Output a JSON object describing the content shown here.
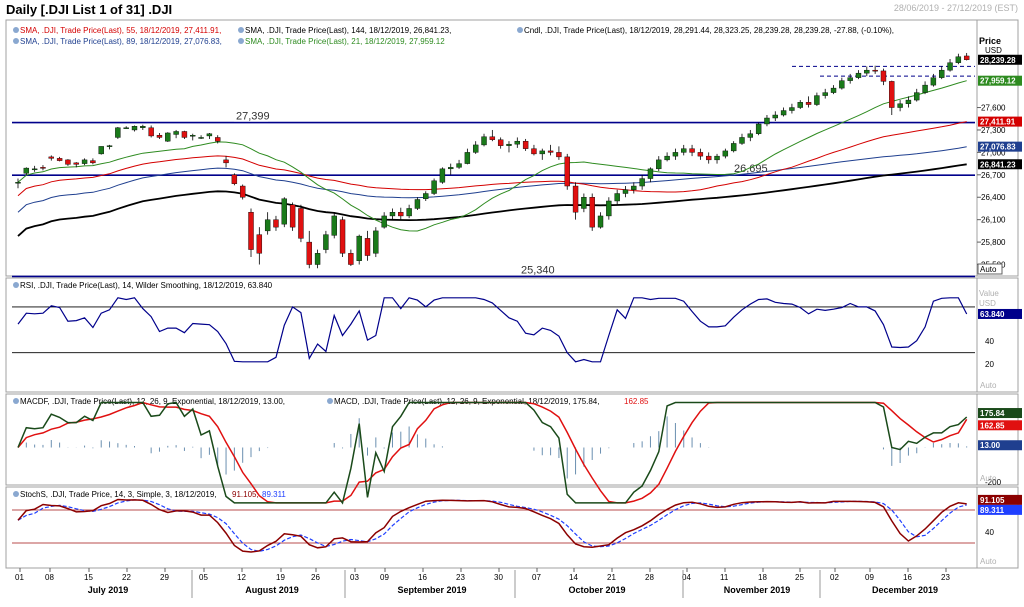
{
  "header": {
    "title": "Daily [.DJI List 1 of 31] .DJI",
    "date_range": "28/06/2019 - 27/12/2019 (EST)"
  },
  "colors": {
    "sma55": "#d40000",
    "sma144": "#000000",
    "sma89": "#1f3f8f",
    "sma21": "#2e8b20",
    "candle_up": "#1a7a1a",
    "candle_down": "#e01010",
    "rsi": "#00008b",
    "macd": "#1a4a1a",
    "signal": "#e01010",
    "stoch_k": "#8b0000",
    "stoch_d": "#1f3fff",
    "hline": "#00008b"
  },
  "panels": {
    "price": {
      "legend": [
        {
          "text": "SMA, .DJI, Trade Price(Last),   55, 18/12/2019, 27,411.91,",
          "color": "#d40000"
        },
        {
          "text": "SMA, .DJI, Trade Price(Last),   144, 18/12/2019, 26,841.23,",
          "color": "#000000"
        },
        {
          "text": "Cndl, .DJI, Trade Price(Last),   18/12/2019, 28,291.44, 28,323.25, 28,239.28, 28,239.28, -27.88, (-0.10%),",
          "color": "#000000"
        },
        {
          "text": "SMA, .DJI, Trade Price(Last),   89, 18/12/2019, 27,076.83,",
          "color": "#1f3f8f"
        },
        {
          "text": "SMA, .DJI, Trade Price(Last),   21, 18/12/2019, 27,959.12",
          "color": "#2e8b20"
        }
      ],
      "axis_title": "Price",
      "axis_unit": "USD",
      "ticks": [
        "27,600",
        "27,300",
        "27,000",
        "26,700",
        "26,400",
        "26,100",
        "25,800",
        "25,500"
      ],
      "tag_labels": [
        "28,239.28",
        "27,959.12",
        "27,411.91",
        "27,076.83",
        "26,841.23"
      ],
      "hlines": [
        {
          "label": "27,399",
          "value": 27399
        },
        {
          "label": "26,695",
          "value": 26695
        },
        {
          "label": "25,340",
          "value": 25340
        }
      ],
      "auto": "Auto"
    },
    "rsi": {
      "legend": "RSI, .DJI, Trade Price(Last),   14, Wilder Smoothing, 18/12/2019, 63.840",
      "axis_title": "Value",
      "axis_unit": "USD",
      "ticks": [
        "40",
        "20"
      ],
      "current": "63.840",
      "auto": "Auto"
    },
    "macd": {
      "legend": "MACDF, .DJI, Trade Price(Last),   12, 26, 9, Exponential, 18/12/2019, 13.00,",
      "legend2": "MACD, .DJI, Trade Price(Last),   12, 26, 9, Exponential, 18/12/2019, 175.84,",
      "legend2_value": "162.85",
      "ticks": [
        "-200"
      ],
      "tags": [
        "175.84",
        "162.85",
        "13.00"
      ],
      "auto": "Auto"
    },
    "stoch": {
      "legend": "StochS, .DJI, Trade Price,   14, 3, Simple, 3, 18/12/2019,",
      "legend_k": "91.105,",
      "legend_d": "89.311",
      "ticks": [
        "40"
      ],
      "tags": [
        "91.105",
        "89.311"
      ],
      "auto": "Auto"
    }
  },
  "x_axis": {
    "day_ticks": [
      "01",
      "08",
      "15",
      "22",
      "29",
      "05",
      "12",
      "19",
      "26",
      "03",
      "09",
      "16",
      "23",
      "30",
      "07",
      "14",
      "21",
      "28",
      "04",
      "11",
      "18",
      "25",
      "02",
      "09",
      "16",
      "23"
    ],
    "months": [
      "July 2019",
      "August 2019",
      "September 2019",
      "October 2019",
      "November 2019",
      "December 2019"
    ]
  },
  "chart_data": {
    "type": "candlestick",
    "x_range": [
      "28/06/2019",
      "27/12/2019"
    ],
    "price_ylim": [
      25400,
      28450
    ],
    "candles": [
      [
        26600,
        26650,
        26520,
        26600
      ],
      [
        26720,
        26800,
        26700,
        26790
      ],
      [
        26780,
        26820,
        26740,
        26780
      ],
      [
        26800,
        26830,
        26760,
        26790
      ],
      [
        26940,
        26960,
        26890,
        26920
      ],
      [
        26920,
        26940,
        26880,
        26890
      ],
      [
        26900,
        26910,
        26820,
        26840
      ],
      [
        26860,
        26870,
        26800,
        26840
      ],
      [
        26850,
        26920,
        26830,
        26900
      ],
      [
        26890,
        26920,
        26840,
        26860
      ],
      [
        26980,
        27080,
        26970,
        27080
      ],
      [
        27080,
        27100,
        27040,
        27090
      ],
      [
        27200,
        27340,
        27180,
        27330
      ],
      [
        27330,
        27350,
        27320,
        27330
      ],
      [
        27300,
        27360,
        27280,
        27350
      ],
      [
        27330,
        27370,
        27300,
        27350
      ],
      [
        27330,
        27360,
        27200,
        27220
      ],
      [
        27230,
        27260,
        27180,
        27200
      ],
      [
        27150,
        27270,
        27140,
        27260
      ],
      [
        27240,
        27300,
        27190,
        27280
      ],
      [
        27280,
        27290,
        27180,
        27200
      ],
      [
        27220,
        27250,
        27160,
        27230
      ],
      [
        27200,
        27230,
        27180,
        27200
      ],
      [
        27220,
        27260,
        27180,
        27250
      ],
      [
        27200,
        27230,
        27120,
        27150
      ],
      [
        26900,
        26950,
        26800,
        26860
      ],
      [
        26700,
        26720,
        26560,
        26580
      ],
      [
        26550,
        26570,
        26370,
        26400
      ],
      [
        26200,
        26250,
        25600,
        25700
      ],
      [
        25900,
        26000,
        25500,
        25650
      ],
      [
        25950,
        26200,
        25900,
        26100
      ],
      [
        26100,
        26150,
        25950,
        26000
      ],
      [
        26040,
        26400,
        26000,
        26380
      ],
      [
        26300,
        26330,
        25950,
        26000
      ],
      [
        26250,
        26300,
        25800,
        25850
      ],
      [
        25800,
        25950,
        25450,
        25500
      ],
      [
        25500,
        25700,
        25450,
        25650
      ],
      [
        25700,
        25950,
        25650,
        25900
      ],
      [
        25890,
        26200,
        25850,
        26150
      ],
      [
        26100,
        26140,
        25600,
        25650
      ],
      [
        25650,
        25700,
        25480,
        25500
      ],
      [
        25550,
        25900,
        25500,
        25880
      ],
      [
        25850,
        25950,
        25550,
        25620
      ],
      [
        25650,
        26000,
        25600,
        25950
      ],
      [
        26000,
        26200,
        25980,
        26150
      ],
      [
        26150,
        26250,
        26100,
        26200
      ],
      [
        26200,
        26260,
        26100,
        26150
      ],
      [
        26150,
        26300,
        26120,
        26250
      ],
      [
        26250,
        26400,
        26230,
        26370
      ],
      [
        26380,
        26480,
        26350,
        26450
      ],
      [
        26450,
        26650,
        26430,
        26620
      ],
      [
        26600,
        26800,
        26580,
        26780
      ],
      [
        26780,
        26850,
        26700,
        26800
      ],
      [
        26800,
        26900,
        26780,
        26850
      ],
      [
        26850,
        27050,
        26840,
        27000
      ],
      [
        27000,
        27150,
        26980,
        27100
      ],
      [
        27100,
        27250,
        27080,
        27210
      ],
      [
        27210,
        27300,
        27150,
        27170
      ],
      [
        27170,
        27200,
        27050,
        27090
      ],
      [
        27090,
        27150,
        27000,
        27110
      ],
      [
        27110,
        27200,
        27060,
        27150
      ],
      [
        27150,
        27180,
        27020,
        27050
      ],
      [
        27050,
        27100,
        26960,
        26980
      ],
      [
        26980,
        27050,
        26900,
        27020
      ],
      [
        27020,
        27100,
        26960,
        27000
      ],
      [
        27000,
        27080,
        26900,
        26940
      ],
      [
        26940,
        26980,
        26500,
        26550
      ],
      [
        26550,
        26600,
        26100,
        26200
      ],
      [
        26250,
        26450,
        26200,
        26400
      ],
      [
        26400,
        26450,
        25950,
        26000
      ],
      [
        26000,
        26200,
        25980,
        26150
      ],
      [
        26150,
        26400,
        26100,
        26350
      ],
      [
        26350,
        26500,
        26300,
        26450
      ],
      [
        26450,
        26550,
        26400,
        26500
      ],
      [
        26500,
        26600,
        26450,
        26550
      ],
      [
        26550,
        26700,
        26500,
        26650
      ],
      [
        26650,
        26800,
        26600,
        26780
      ],
      [
        26780,
        26950,
        26750,
        26900
      ],
      [
        26900,
        27000,
        26880,
        26950
      ],
      [
        26950,
        27050,
        26900,
        27000
      ],
      [
        27000,
        27100,
        26960,
        27050
      ],
      [
        27050,
        27100,
        26950,
        27000
      ],
      [
        27000,
        27050,
        26900,
        26950
      ],
      [
        26950,
        27000,
        26850,
        26900
      ],
      [
        26900,
        26980,
        26850,
        26950
      ],
      [
        26950,
        27050,
        26920,
        27020
      ],
      [
        27020,
        27150,
        27000,
        27120
      ],
      [
        27120,
        27250,
        27100,
        27200
      ],
      [
        27200,
        27300,
        27150,
        27250
      ],
      [
        27250,
        27400,
        27230,
        27380
      ],
      [
        27380,
        27500,
        27350,
        27460
      ],
      [
        27460,
        27550,
        27420,
        27500
      ],
      [
        27500,
        27600,
        27480,
        27560
      ],
      [
        27560,
        27650,
        27520,
        27600
      ],
      [
        27600,
        27700,
        27580,
        27670
      ],
      [
        27670,
        27750,
        27600,
        27640
      ],
      [
        27640,
        27800,
        27620,
        27760
      ],
      [
        27760,
        27850,
        27720,
        27800
      ],
      [
        27800,
        27900,
        27780,
        27860
      ],
      [
        27860,
        28000,
        27840,
        27960
      ],
      [
        27960,
        28050,
        27920,
        28000
      ],
      [
        28000,
        28100,
        27980,
        28060
      ],
      [
        28060,
        28150,
        28020,
        28100
      ],
      [
        28100,
        28160,
        28050,
        28090
      ],
      [
        28090,
        28120,
        27900,
        27950
      ],
      [
        27950,
        27960,
        27500,
        27600
      ],
      [
        27600,
        27700,
        27550,
        27650
      ],
      [
        27650,
        27750,
        27600,
        27700
      ],
      [
        27700,
        27850,
        27680,
        27800
      ],
      [
        27800,
        27950,
        27780,
        27900
      ],
      [
        27900,
        28050,
        27880,
        28000
      ],
      [
        28000,
        28150,
        27980,
        28100
      ],
      [
        28100,
        28250,
        28080,
        28200
      ],
      [
        28200,
        28320,
        28180,
        28280
      ],
      [
        28290,
        28330,
        28230,
        28239
      ]
    ],
    "sma21_end": 27959.12,
    "sma55_end": 27411.91,
    "sma89_end": 27076.83,
    "sma144_end": 26841.23,
    "rsi_end": 63.84,
    "macd_end": 175.84,
    "signal_end": 162.85,
    "hist_end": 13.0,
    "stoch_k_end": 91.105,
    "stoch_d_end": 89.311
  }
}
